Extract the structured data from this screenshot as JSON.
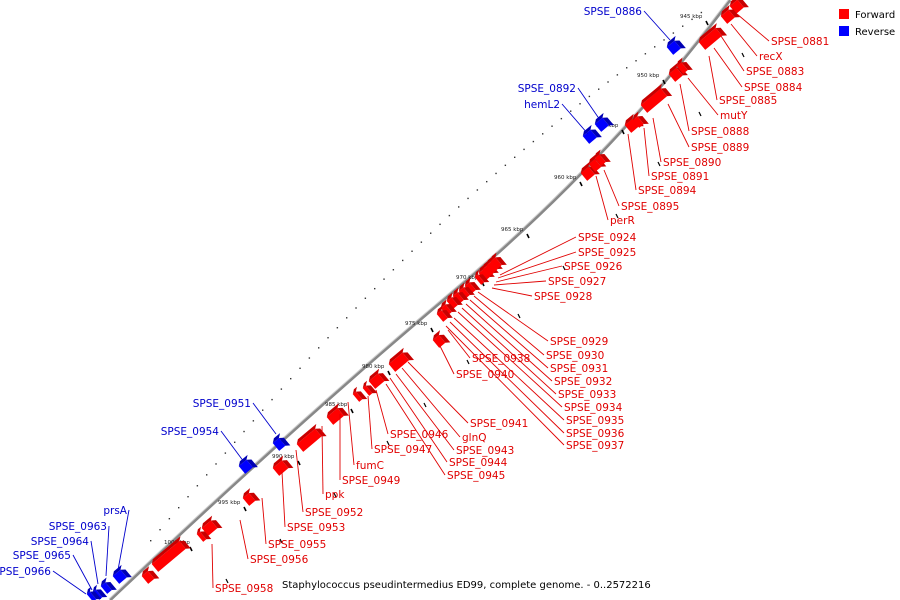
{
  "title": "Staphylococcus pseudintermedius ED99, complete genome. - 0..2572216",
  "colors": {
    "forward": "#ff0000",
    "forward_dark": "#c80000",
    "reverse": "#0000ff",
    "reverse_dark": "#0000b4",
    "label_forward": "#e00000",
    "label_reverse": "#0000cc",
    "backbone": "#888888"
  },
  "legend": [
    {
      "label": "Forward",
      "strand": "forward"
    },
    {
      "label": "Reverse",
      "strand": "reverse"
    }
  ],
  "kbp_ticks": [
    "945 kbp",
    "950 kbp",
    "955 kbp",
    "960 kbp",
    "965 kbp",
    "970 kbp",
    "975 kbp",
    "980 kbp",
    "985 kbp",
    "990 kbp",
    "995 kbp",
    "1000 kbp"
  ],
  "forward_labels": [
    "SPSE_0881",
    "recX",
    "SPSE_0883",
    "SPSE_0884",
    "SPSE_0885",
    "mutY",
    "SPSE_0888",
    "SPSE_0889",
    "SPSE_0890",
    "SPSE_0891",
    "SPSE_0894",
    "SPSE_0895",
    "perR",
    "SPSE_0924",
    "SPSE_0925",
    "SPSE_0926",
    "SPSE_0927",
    "SPSE_0928",
    "SPSE_0929",
    "SPSE_0930",
    "SPSE_0931",
    "SPSE_0932",
    "SPSE_0933",
    "SPSE_0934",
    "SPSE_0935",
    "SPSE_0936",
    "SPSE_0937",
    "SPSE_0938",
    "SPSE_0940",
    "SPSE_0941",
    "glnQ",
    "SPSE_0943",
    "SPSE_0944",
    "SPSE_0945",
    "SPSE_0946",
    "SPSE_0947",
    "fumC",
    "SPSE_0949",
    "ppk",
    "SPSE_0952",
    "SPSE_0953",
    "SPSE_0955",
    "SPSE_0956",
    "SPSE_0958"
  ],
  "reverse_labels": [
    "SPSE_0886",
    "SPSE_0892",
    "hemL2",
    "SPSE_0951",
    "SPSE_0954",
    "prsA",
    "SPSE_0963",
    "SPSE_0964",
    "SPSE_0965",
    "SPSE_0966"
  ]
}
